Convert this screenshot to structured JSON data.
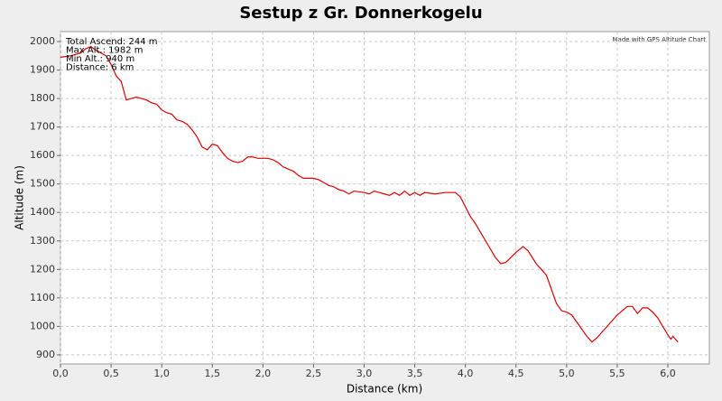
{
  "chart_data": {
    "type": "line",
    "title": "Sestup z Gr. Donnerkogelu",
    "x_label": "Distance (km)",
    "y_label": "Altitude (m)",
    "annotations": [
      "Total Ascend: 244 m",
      "Max Alt.: 1982 m",
      "Min Alt.: 940 m",
      "Distance: 6 km"
    ],
    "credit": "Made with GPS Altitude Chart",
    "xlim": [
      0,
      6.41
    ],
    "ylim": [
      868,
      2035
    ],
    "xticks": [
      {
        "value": 0,
        "label": "0,0"
      },
      {
        "value": 0.5,
        "label": "0,5"
      },
      {
        "value": 1,
        "label": "1,0"
      },
      {
        "value": 1.5,
        "label": "1,5"
      },
      {
        "value": 2,
        "label": "2,0"
      },
      {
        "value": 2.5,
        "label": "2,5"
      },
      {
        "value": 3,
        "label": "3,0"
      },
      {
        "value": 3.5,
        "label": "3,5"
      },
      {
        "value": 4,
        "label": "4,0"
      },
      {
        "value": 4.5,
        "label": "4,5"
      },
      {
        "value": 5,
        "label": "5,0"
      },
      {
        "value": 5.5,
        "label": "5,5"
      },
      {
        "value": 6,
        "label": "6,0"
      }
    ],
    "yticks": [
      900,
      1000,
      1100,
      1200,
      1300,
      1400,
      1500,
      1600,
      1700,
      1800,
      1900,
      2000
    ],
    "grid": true,
    "x": [
      0,
      0.1,
      0.2,
      0.25,
      0.3,
      0.35,
      0.45,
      0.5,
      0.55,
      0.6,
      0.65,
      0.7,
      0.75,
      0.8,
      0.85,
      0.9,
      0.95,
      1.0,
      1.05,
      1.1,
      1.15,
      1.2,
      1.25,
      1.3,
      1.35,
      1.4,
      1.45,
      1.5,
      1.55,
      1.6,
      1.65,
      1.7,
      1.75,
      1.8,
      1.85,
      1.9,
      1.95,
      2.0,
      2.05,
      2.1,
      2.15,
      2.2,
      2.3,
      2.35,
      2.4,
      2.5,
      2.55,
      2.6,
      2.65,
      2.7,
      2.75,
      2.8,
      2.85,
      2.9,
      3.0,
      3.05,
      3.1,
      3.2,
      3.25,
      3.3,
      3.35,
      3.4,
      3.45,
      3.5,
      3.55,
      3.6,
      3.7,
      3.8,
      3.9,
      3.95,
      4.0,
      4.05,
      4.1,
      4.2,
      4.3,
      4.35,
      4.4,
      4.5,
      4.57,
      4.62,
      4.7,
      4.75,
      4.8,
      4.85,
      4.9,
      4.95,
      5.0,
      5.05,
      5.1,
      5.15,
      5.2,
      5.25,
      5.3,
      5.4,
      5.5,
      5.6,
      5.65,
      5.7,
      5.75,
      5.8,
      5.85,
      5.9,
      5.95,
      6.0,
      6.03,
      6.05,
      6.1
    ],
    "series": [
      {
        "name": "Altitude",
        "color": "#e00000",
        "values": [
          1945,
          1950,
          1960,
          1975,
          1982,
          1970,
          1950,
          1920,
          1880,
          1860,
          1795,
          1800,
          1805,
          1800,
          1795,
          1785,
          1780,
          1760,
          1750,
          1745,
          1725,
          1720,
          1710,
          1690,
          1665,
          1630,
          1620,
          1640,
          1635,
          1610,
          1590,
          1580,
          1575,
          1580,
          1595,
          1595,
          1590,
          1590,
          1590,
          1585,
          1575,
          1560,
          1545,
          1530,
          1520,
          1520,
          1515,
          1505,
          1495,
          1490,
          1480,
          1475,
          1465,
          1475,
          1470,
          1465,
          1475,
          1465,
          1460,
          1470,
          1460,
          1475,
          1460,
          1470,
          1460,
          1470,
          1465,
          1470,
          1470,
          1455,
          1420,
          1385,
          1360,
          1300,
          1240,
          1220,
          1225,
          1260,
          1280,
          1265,
          1220,
          1200,
          1180,
          1130,
          1080,
          1055,
          1050,
          1040,
          1015,
          990,
          965,
          945,
          960,
          1000,
          1040,
          1070,
          1070,
          1045,
          1065,
          1065,
          1050,
          1030,
          1000,
          970,
          955,
          965,
          945
        ]
      }
    ]
  }
}
